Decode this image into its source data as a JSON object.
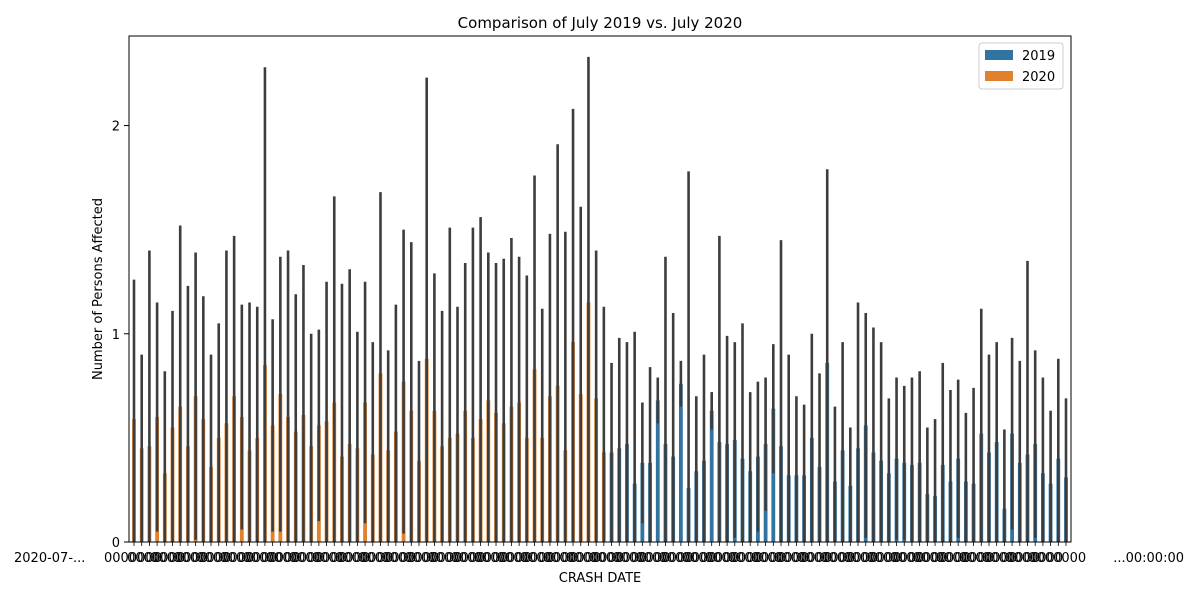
{
  "chart_data": {
    "type": "bar",
    "title": "Comparison of July 2019 vs. July 2020",
    "xlabel": "CRASH DATE",
    "ylabel": "Number of Persons Affected",
    "ylim": [
      0,
      2.43
    ],
    "yticks": [
      0,
      1,
      2
    ],
    "x_tick_labels_overlapping": true,
    "x_tick_label_left": "2020-07-...",
    "x_tick_label_right": "...00:00:00",
    "legend": {
      "placement": "top-right",
      "entries": [
        "2019",
        "2020"
      ]
    },
    "series": [
      {
        "name": "2020",
        "color": "#e1812c",
        "values": [
          0.59,
          0.45,
          0.46,
          0.6,
          0.33,
          0.55,
          0.65,
          0.46,
          0.7,
          0.59,
          0.36,
          0.5,
          0.57,
          0.7,
          0.6,
          0.44,
          0.5,
          0.85,
          0.56,
          0.71,
          0.6,
          0.53,
          0.61,
          0.46,
          0.56,
          0.58,
          0.67,
          0.41,
          0.47,
          0.45,
          0.67,
          0.42,
          0.81,
          0.44,
          0.53,
          0.77,
          0.63,
          0.39,
          0.88,
          0.63,
          0.46,
          0.5,
          0.52,
          0.63,
          0.5,
          0.59,
          0.68,
          0.62,
          0.57,
          0.65,
          0.67,
          0.5,
          0.83,
          0.5,
          0.7,
          0.75,
          0.44,
          0.96,
          0.71,
          1.15,
          0.69,
          0.43
        ],
        "ci_upper": [
          1.26,
          0.9,
          1.4,
          1.15,
          0.82,
          1.11,
          1.52,
          1.23,
          1.39,
          1.18,
          0.9,
          1.05,
          1.4,
          1.47,
          1.14,
          1.15,
          1.13,
          2.28,
          1.07,
          1.37,
          1.4,
          1.19,
          1.33,
          1.0,
          1.02,
          1.25,
          1.66,
          1.24,
          1.31,
          1.01,
          1.25,
          0.96,
          1.68,
          0.92,
          1.14,
          1.5,
          1.44,
          0.87,
          2.23,
          1.29,
          1.11,
          1.51,
          1.13,
          1.34,
          1.51,
          1.56,
          1.39,
          1.34,
          1.36,
          1.46,
          1.37,
          1.28,
          1.76,
          1.12,
          1.48,
          1.91,
          1.49,
          2.08,
          1.61,
          2.33,
          1.4,
          1.13
        ]
      },
      {
        "name": "2019",
        "color": "#3274a1",
        "values": [
          0.43,
          0.45,
          0.47,
          0.28,
          0.38,
          0.38,
          0.68,
          0.47,
          0.41,
          0.76,
          0.26,
          0.34,
          0.39,
          0.63,
          0.48,
          0.47,
          0.49,
          0.4,
          0.34,
          0.41,
          0.47,
          0.64,
          0.46,
          0.32,
          0.32,
          0.32,
          0.5,
          0.36,
          0.86,
          0.29,
          0.44,
          0.27,
          0.45,
          0.56,
          0.43,
          0.39,
          0.33,
          0.4,
          0.38,
          0.37,
          0.38,
          0.23,
          0.22,
          0.37,
          0.29,
          0.4,
          0.29,
          0.28,
          0.52,
          0.43,
          0.48,
          0.16,
          0.52,
          0.38,
          0.42,
          0.47,
          0.33,
          0.28,
          0.4,
          0.31
        ],
        "ci_upper": [
          0.86,
          0.98,
          0.96,
          1.01,
          0.67,
          0.84,
          0.79,
          1.37,
          1.1,
          0.87,
          1.78,
          0.7,
          0.9,
          0.72,
          1.47,
          0.99,
          0.96,
          1.05,
          0.72,
          0.77,
          0.79,
          0.95,
          1.45,
          0.9,
          0.7,
          0.66,
          1.0,
          0.81,
          1.79,
          0.65,
          0.96,
          0.55,
          1.15,
          1.1,
          1.03,
          0.96,
          0.69,
          0.79,
          0.75,
          0.79,
          0.82,
          0.55,
          0.59,
          0.86,
          0.73,
          0.78,
          0.62,
          0.74,
          1.12,
          0.9,
          0.96,
          0.54,
          0.98,
          0.87,
          1.35,
          0.92,
          0.79,
          0.63,
          0.88,
          0.69
        ]
      }
    ]
  }
}
